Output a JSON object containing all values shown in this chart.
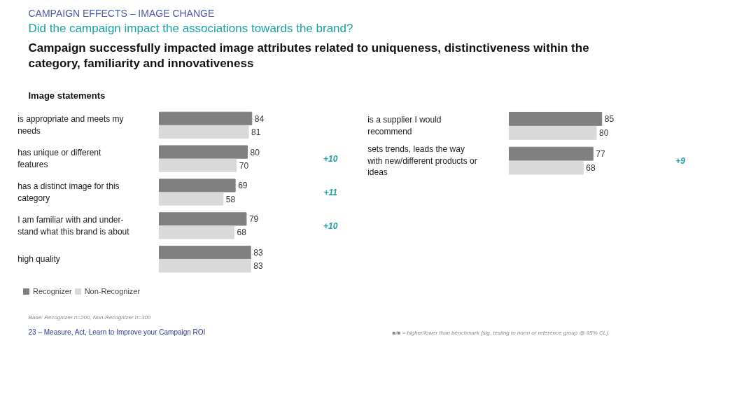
{
  "chart_data": [
    {
      "type": "bar",
      "orientation": "horizontal",
      "title": "CAMPAIGN EFFECTS – IMAGE CHANGE",
      "subtitle": "Did the campaign impact the associations towards the brand?",
      "ylabel": "Image statements",
      "categories": [
        "is appropriate and meets my needs",
        "has unique or different features",
        "has a distinct image for this category",
        "I am familiar with and under-stand what this brand is about",
        "high quality"
      ],
      "series": [
        {
          "name": "Recognizer",
          "color": "#808080",
          "values": [
            84,
            80,
            69,
            79,
            83
          ]
        },
        {
          "name": "Non-Recognizer",
          "color": "#d9d9d9",
          "values": [
            81,
            70,
            58,
            68,
            83
          ]
        }
      ],
      "data_labels": true,
      "legend": "bottom left",
      "annotations": [
        "Campaign successfully impacted image attributes related to uniqueness, distinctiveness within the category, familiarity and innovativeness",
        "+10",
        "+11",
        "+10",
        "Base: Recognizer n=200, Non-Recognizer n=300",
        "23 – Measure, Act, Learn to Improve your Campaign ROI",
        "■/■ = higher/lower than benchmark (sig. testing to norm or reference group @ 95% CL)"
      ]
    },
    {
      "type": "bar",
      "orientation": "horizontal",
      "categories": [
        "is a supplier I would recommend",
        "sets trends, leads the way with new/different products or ideas"
      ],
      "series": [
        {
          "color": "#808080",
          "values": [
            85,
            77
          ]
        },
        {
          "color": "#d9d9d9",
          "values": [
            80,
            68
          ]
        }
      ],
      "data_labels": true,
      "annotations": [
        "+9"
      ]
    }
  ]
}
